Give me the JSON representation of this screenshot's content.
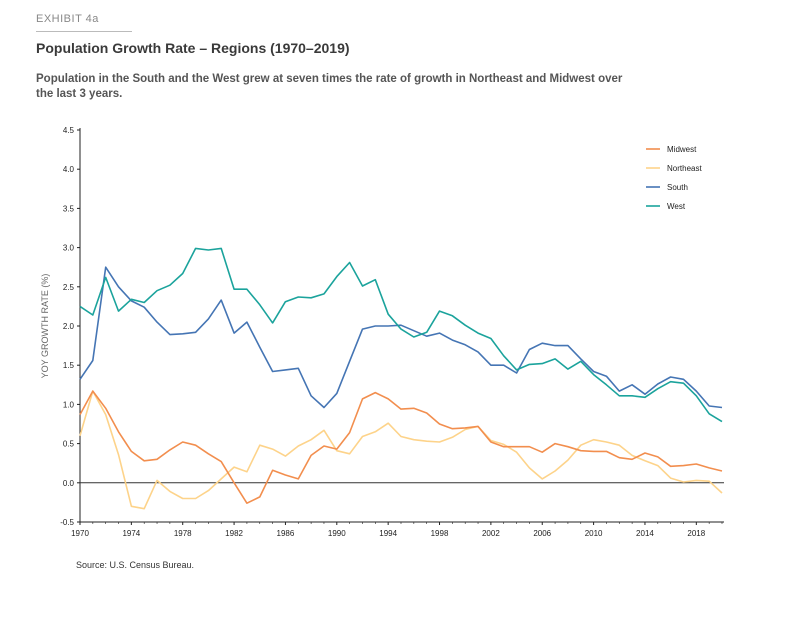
{
  "header": {
    "exhibit": "EXHIBIT 4a",
    "title": "Population Growth Rate – Regions (1970–2019)",
    "subtitle": "Population in the South and the West grew at seven times the rate of growth in Northeast and Midwest over the last 3 years."
  },
  "source": "Source: U.S. Census Bureau.",
  "chart_data": {
    "type": "line",
    "title": "Population Growth Rate – Regions (1970–2019)",
    "xlabel": "",
    "ylabel": "YOY GROWTH RATE (%)",
    "xlim": [
      1970,
      2020
    ],
    "ylim": [
      -0.5,
      4.5
    ],
    "x_ticks": [
      1970,
      1974,
      1978,
      1982,
      1986,
      1990,
      1994,
      1998,
      2002,
      2006,
      2010,
      2014,
      2018
    ],
    "y_ticks": [
      -0.5,
      0.0,
      0.5,
      1.0,
      1.5,
      2.0,
      2.5,
      3.0,
      3.5,
      4.0,
      4.5
    ],
    "y_tick_labels": [
      "-0.5",
      "0.0",
      "0.5",
      "1.0",
      "1.5",
      "2.0",
      "2.5",
      "3.0",
      "3.5",
      "4.0",
      "4.5"
    ],
    "legend_position": "top-right",
    "x": [
      1970,
      1971,
      1972,
      1973,
      1974,
      1975,
      1976,
      1977,
      1978,
      1979,
      1980,
      1981,
      1982,
      1983,
      1984,
      1985,
      1986,
      1987,
      1988,
      1989,
      1990,
      1991,
      1992,
      1993,
      1994,
      1995,
      1996,
      1997,
      1998,
      1999,
      2000,
      2001,
      2002,
      2003,
      2004,
      2005,
      2006,
      2007,
      2008,
      2009,
      2010,
      2011,
      2012,
      2013,
      2014,
      2015,
      2016,
      2017,
      2018,
      2019,
      2020
    ],
    "series": [
      {
        "name": "Midwest",
        "color": "#f28e4e",
        "values": [
          0.87,
          1.17,
          0.95,
          0.65,
          0.4,
          0.28,
          0.3,
          0.42,
          0.52,
          0.48,
          0.37,
          0.27,
          0.0,
          -0.26,
          -0.18,
          0.16,
          0.1,
          0.05,
          0.35,
          0.47,
          0.43,
          0.64,
          1.07,
          1.15,
          1.07,
          0.94,
          0.95,
          0.89,
          0.75,
          0.69,
          0.7,
          0.72,
          0.52,
          0.46,
          0.46,
          0.46,
          0.39,
          0.5,
          0.46,
          0.41,
          0.4,
          0.4,
          0.32,
          0.3,
          0.38,
          0.33,
          0.21,
          0.22,
          0.24,
          0.19,
          0.15
        ]
      },
      {
        "name": "Northeast",
        "color": "#fdd38a",
        "values": [
          0.6,
          1.17,
          0.87,
          0.36,
          -0.3,
          -0.33,
          0.03,
          -0.11,
          -0.2,
          -0.2,
          -0.1,
          0.05,
          0.2,
          0.14,
          0.48,
          0.43,
          0.34,
          0.47,
          0.55,
          0.67,
          0.41,
          0.37,
          0.59,
          0.65,
          0.76,
          0.59,
          0.55,
          0.53,
          0.52,
          0.58,
          0.68,
          0.72,
          0.54,
          0.49,
          0.39,
          0.19,
          0.05,
          0.15,
          0.29,
          0.48,
          0.55,
          0.52,
          0.48,
          0.35,
          0.28,
          0.22,
          0.06,
          0.01,
          0.03,
          0.02,
          -0.13
        ]
      },
      {
        "name": "South",
        "color": "#4575b4",
        "values": [
          1.32,
          1.56,
          2.75,
          2.5,
          2.32,
          2.24,
          2.05,
          1.89,
          1.9,
          1.92,
          2.09,
          2.33,
          1.91,
          2.05,
          1.73,
          1.42,
          1.44,
          1.46,
          1.11,
          0.96,
          1.14,
          1.55,
          1.96,
          2.0,
          2.0,
          2.01,
          1.94,
          1.87,
          1.91,
          1.82,
          1.76,
          1.67,
          1.5,
          1.5,
          1.4,
          1.7,
          1.78,
          1.75,
          1.75,
          1.58,
          1.42,
          1.36,
          1.17,
          1.25,
          1.13,
          1.26,
          1.35,
          1.32,
          1.17,
          0.98,
          0.96
        ]
      },
      {
        "name": "West",
        "color": "#1ba39c",
        "values": [
          2.25,
          2.14,
          2.62,
          2.19,
          2.34,
          2.3,
          2.45,
          2.52,
          2.67,
          2.99,
          2.97,
          2.99,
          2.47,
          2.47,
          2.27,
          2.04,
          2.31,
          2.37,
          2.36,
          2.41,
          2.63,
          2.81,
          2.51,
          2.59,
          2.15,
          1.96,
          1.86,
          1.92,
          2.19,
          2.13,
          2.01,
          1.91,
          1.84,
          1.62,
          1.44,
          1.51,
          1.52,
          1.58,
          1.45,
          1.55,
          1.38,
          1.25,
          1.11,
          1.11,
          1.09,
          1.2,
          1.29,
          1.27,
          1.11,
          0.88,
          0.78
        ]
      }
    ]
  }
}
